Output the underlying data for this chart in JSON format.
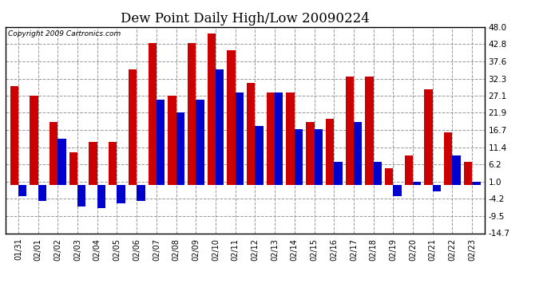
{
  "title": "Dew Point Daily High/Low 20090224",
  "copyright": "Copyright 2009 Cartronics.com",
  "dates": [
    "01/31",
    "02/01",
    "02/02",
    "02/03",
    "02/04",
    "02/05",
    "02/06",
    "02/07",
    "02/08",
    "02/09",
    "02/10",
    "02/11",
    "02/12",
    "02/13",
    "02/14",
    "02/15",
    "02/16",
    "02/17",
    "02/18",
    "02/19",
    "02/20",
    "02/21",
    "02/22",
    "02/23"
  ],
  "highs": [
    30.0,
    27.0,
    19.0,
    10.0,
    13.0,
    13.0,
    35.0,
    43.0,
    27.0,
    43.0,
    46.0,
    41.0,
    31.0,
    28.0,
    28.0,
    19.0,
    20.0,
    33.0,
    33.0,
    5.0,
    9.0,
    29.0,
    16.0,
    7.0
  ],
  "lows": [
    -3.5,
    -5.0,
    14.0,
    -6.5,
    -7.0,
    -5.5,
    -5.0,
    26.0,
    22.0,
    26.0,
    35.0,
    28.0,
    18.0,
    28.0,
    17.0,
    17.0,
    7.0,
    19.0,
    7.0,
    -3.5,
    1.0,
    -2.0,
    9.0,
    1.0
  ],
  "high_color": "#cc0000",
  "low_color": "#0000cc",
  "ylim": [
    -14.7,
    48.0
  ],
  "yticks": [
    -14.7,
    -9.5,
    -4.2,
    1.0,
    6.2,
    11.4,
    16.7,
    21.9,
    27.1,
    32.3,
    37.6,
    42.8,
    48.0
  ],
  "bg_color": "#ffffff",
  "grid_color": "#999999",
  "bar_width": 0.42,
  "figsize": [
    6.9,
    3.75
  ],
  "dpi": 100
}
